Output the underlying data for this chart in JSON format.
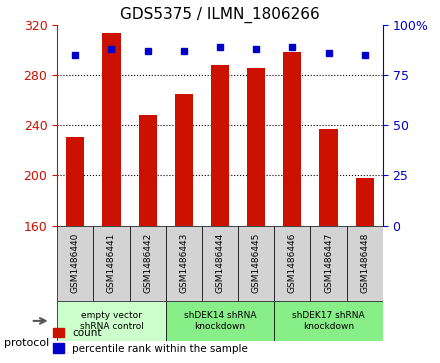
{
  "title": "GDS5375 / ILMN_1806266",
  "samples": [
    "GSM1486440",
    "GSM1486441",
    "GSM1486442",
    "GSM1486443",
    "GSM1486444",
    "GSM1486445",
    "GSM1486446",
    "GSM1486447",
    "GSM1486448"
  ],
  "counts": [
    231,
    314,
    248,
    265,
    288,
    286,
    299,
    237,
    198
  ],
  "percentiles": [
    85,
    88,
    87,
    87,
    89,
    88,
    89,
    86,
    85
  ],
  "ylim_left": [
    160,
    320
  ],
  "ylim_right": [
    0,
    100
  ],
  "yticks_left": [
    160,
    200,
    240,
    280,
    320
  ],
  "yticks_right": [
    0,
    25,
    50,
    75,
    100
  ],
  "bar_color": "#cc1100",
  "dot_color": "#0000cc",
  "groups": [
    {
      "label": "empty vector\nshRNA control",
      "start": 0,
      "end": 3,
      "color": "#ccffcc"
    },
    {
      "label": "shDEK14 shRNA\nknockdown",
      "start": 3,
      "end": 6,
      "color": "#88ee88"
    },
    {
      "label": "shDEK17 shRNA\nknockdown",
      "start": 6,
      "end": 9,
      "color": "#88ee88"
    }
  ],
  "legend_count_label": "count",
  "legend_pct_label": "percentile rank within the sample",
  "protocol_label": "protocol",
  "bar_width": 0.5,
  "fig_width": 4.4,
  "fig_height": 3.63,
  "dpi": 100
}
